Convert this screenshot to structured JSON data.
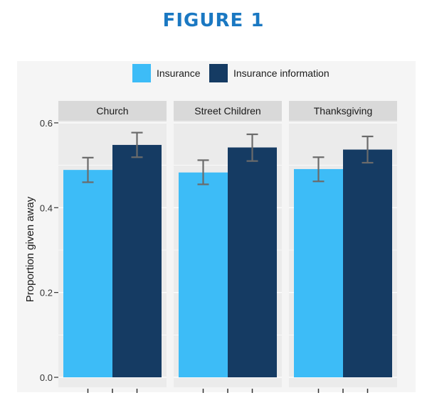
{
  "figure_title": "FIGURE 1",
  "colors": {
    "title": "#1a78c2",
    "panel_bg": "#ebebeb",
    "strip_bg": "#d9d9d9",
    "grid": "#ffffff",
    "errorbar": "#6b6b6b",
    "text": "#1a1a1a"
  },
  "chart_data": {
    "type": "bar",
    "title": "",
    "xlabel": "",
    "ylabel": "Proportion given away",
    "ylim": [
      0,
      0.63
    ],
    "yticks": [
      0.0,
      0.2,
      0.4,
      0.6
    ],
    "ytick_labels": [
      "0.0",
      "0.2",
      "0.4",
      "0.6"
    ],
    "grid": true,
    "legend_position": "top",
    "facets": [
      "Church",
      "Street Children",
      "Thanksgiving"
    ],
    "series": [
      {
        "name": "Insurance",
        "color": "#3dbcf7",
        "values": [
          0.489,
          0.483,
          0.491
        ],
        "error_low": [
          0.46,
          0.455,
          0.462
        ],
        "error_high": [
          0.518,
          0.512,
          0.519
        ]
      },
      {
        "name": "Insurance information",
        "color": "#153b63",
        "values": [
          0.548,
          0.542,
          0.537
        ],
        "error_low": [
          0.519,
          0.51,
          0.506
        ],
        "error_high": [
          0.577,
          0.573,
          0.568
        ]
      }
    ]
  }
}
